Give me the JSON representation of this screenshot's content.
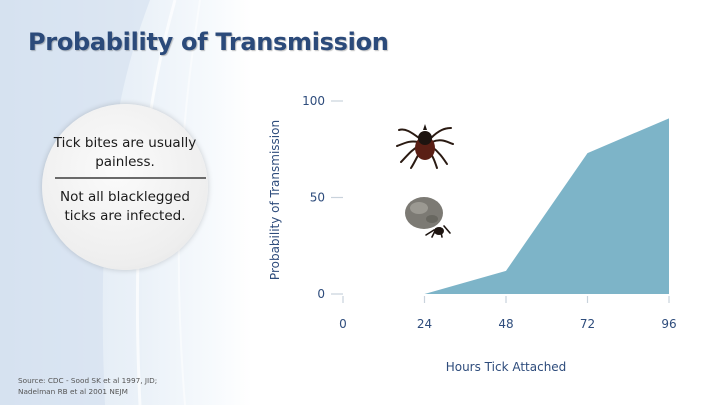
{
  "slide": {
    "title": "Probability of Transmission",
    "bubble_line_1": "Tick bites are usually painless.",
    "bubble_line_2": "Not all blacklegged ticks are infected.",
    "source": "Source: CDC - Sood SK et al 1997, JID; Nadelman RB et al 2001 NEJM"
  },
  "colors": {
    "area_fill": "#7db4c8",
    "axis_text": "#2e4c7c",
    "title": "#2b4a7a"
  },
  "icons": [
    "unfed-tick-image",
    "engorged-tick-image"
  ],
  "chart_data": {
    "type": "area",
    "xlabel": "Hours Tick Attached",
    "ylabel": "Probability of Transmission",
    "x": [
      24,
      48,
      72,
      96
    ],
    "y": [
      0,
      12,
      73,
      91
    ],
    "x_ticks": [
      "0",
      "24",
      "48",
      "72",
      "96"
    ],
    "y_ticks": [
      "0",
      "50",
      "100"
    ],
    "xlim": [
      0,
      96
    ],
    "ylim": [
      0,
      100
    ],
    "grid": false,
    "legend": "none"
  }
}
